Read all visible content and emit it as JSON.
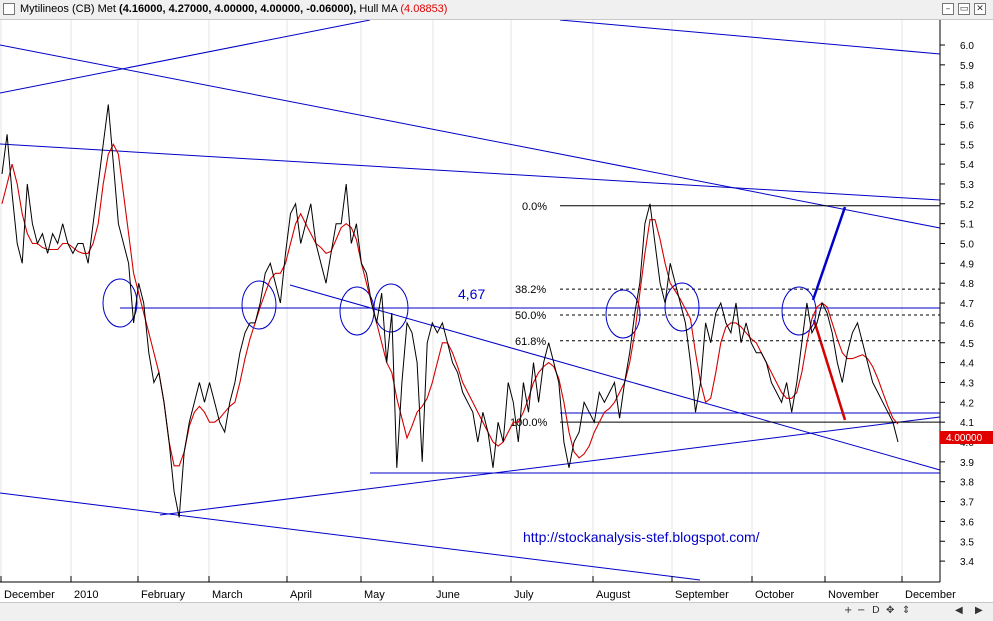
{
  "header": {
    "symbol": "Mytilineos (CB) Met",
    "ohlc": "(4.16000, 4.27000, 4.00000, 4.00000, -0.06000),",
    "indicator": "Hull MA",
    "indicator_value": "(4.08853)"
  },
  "toolbar": {
    "zoom_in": "+",
    "zoom_out": "−",
    "zoom_reset": "D",
    "move": "✥",
    "move_y": "⇕",
    "close": "✕",
    "restore": "▭",
    "min": "–"
  },
  "annotation": {
    "level_label": "4,67",
    "url": "http://stockanalysis-stef.blogspot.com/",
    "last_price_tag": "4.00000"
  },
  "colors": {
    "price": "#000000",
    "hull_ma": "#d40000",
    "trendlines": "#0000c8",
    "fib": "#000000",
    "last_tag_bg": "#e00000"
  },
  "chart_data": {
    "type": "line",
    "title": "Mytilineos (CB) Met",
    "ylim": [
      3.3,
      6.1
    ],
    "y_ticks": [
      "6.0",
      "5.9",
      "5.8",
      "5.7",
      "5.6",
      "5.5",
      "5.4",
      "5.3",
      "5.2",
      "5.1",
      "5.0",
      "4.9",
      "4.8",
      "4.7",
      "4.6",
      "4.5",
      "4.4",
      "4.3",
      "4.2",
      "4.1",
      "4.0",
      "3.9",
      "3.8",
      "3.7",
      "3.6",
      "3.5",
      "3.4"
    ],
    "x_labels": [
      "December",
      "2010",
      "February",
      "March",
      "April",
      "May",
      "June",
      "July",
      "August",
      "September",
      "October",
      "November",
      "December"
    ],
    "grid": true,
    "series": [
      {
        "name": "Mytilineos (CB) Met",
        "values": [
          5.35,
          5.55,
          5.25,
          5.0,
          4.9,
          5.3,
          5.1,
          5.0,
          5.05,
          4.95,
          5.05,
          5.0,
          5.1,
          5.0,
          4.95,
          5.0,
          5.0,
          4.9,
          5.1,
          5.3,
          5.5,
          5.7,
          5.4,
          5.1,
          5.0,
          4.9,
          4.6,
          4.8,
          4.7,
          4.45,
          4.3,
          4.35,
          4.2,
          4.0,
          3.75,
          3.62,
          3.95,
          4.1,
          4.2,
          4.3,
          4.2,
          4.3,
          4.2,
          4.1,
          4.05,
          4.2,
          4.3,
          4.45,
          4.55,
          4.6,
          4.6,
          4.7,
          4.85,
          4.9,
          4.8,
          4.7,
          4.95,
          5.15,
          5.2,
          5.0,
          5.1,
          5.2,
          5.0,
          4.9,
          4.8,
          4.95,
          5.1,
          5.1,
          5.3,
          5.0,
          5.1,
          4.9,
          4.85,
          4.7,
          4.6,
          4.75,
          4.4,
          4.65,
          3.87,
          4.3,
          4.6,
          4.55,
          4.4,
          3.9,
          4.5,
          4.6,
          4.55,
          4.6,
          4.5,
          4.4,
          4.35,
          4.25,
          4.2,
          4.15,
          4.0,
          4.15,
          4.05,
          3.87,
          4.1,
          4.0,
          4.3,
          4.2,
          4.0,
          4.3,
          4.15,
          4.4,
          4.2,
          4.4,
          4.5,
          4.4,
          4.3,
          4.0,
          3.87,
          4.0,
          4.05,
          4.2,
          4.15,
          4.1,
          4.25,
          4.2,
          4.25,
          4.3,
          4.12,
          4.3,
          4.45,
          4.65,
          4.8,
          5.1,
          5.2,
          5.0,
          4.8,
          4.7,
          4.9,
          4.8,
          4.7,
          4.6,
          4.4,
          4.15,
          4.3,
          4.6,
          4.5,
          4.65,
          4.7,
          4.6,
          4.55,
          4.7,
          4.5,
          4.6,
          4.5,
          4.45,
          4.45,
          4.4,
          4.3,
          4.25,
          4.2,
          4.3,
          4.15,
          4.3,
          4.5,
          4.7,
          4.55,
          4.6,
          4.7,
          4.65,
          4.55,
          4.4,
          4.3,
          4.45,
          4.55,
          4.6,
          4.5,
          4.4,
          4.3,
          4.25,
          4.2,
          4.15,
          4.1,
          4.0
        ]
      },
      {
        "name": "Hull MA",
        "values": [
          5.2,
          5.3,
          5.4,
          5.3,
          5.15,
          5.05,
          5.0,
          5.0,
          4.98,
          4.97,
          4.97,
          4.97,
          5.0,
          5.0,
          4.98,
          4.96,
          4.95,
          4.95,
          5.0,
          5.1,
          5.3,
          5.45,
          5.5,
          5.45,
          5.25,
          5.05,
          4.85,
          4.75,
          4.65,
          4.55,
          4.45,
          4.35,
          4.2,
          4.0,
          3.88,
          3.88,
          3.95,
          4.08,
          4.15,
          4.18,
          4.15,
          4.1,
          4.1,
          4.12,
          4.15,
          4.18,
          4.2,
          4.3,
          4.42,
          4.52,
          4.6,
          4.68,
          4.75,
          4.82,
          4.85,
          4.85,
          4.9,
          5.0,
          5.1,
          5.15,
          5.1,
          5.05,
          5.0,
          4.98,
          4.95,
          4.96,
          5.02,
          5.08,
          5.1,
          5.08,
          5.02,
          4.9,
          4.8,
          4.7,
          4.6,
          4.5,
          4.4,
          4.35,
          4.22,
          4.12,
          4.02,
          4.08,
          4.15,
          4.18,
          4.22,
          4.3,
          4.4,
          4.5,
          4.5,
          4.45,
          4.38,
          4.3,
          4.25,
          4.2,
          4.15,
          4.1,
          4.05,
          4.0,
          3.98,
          4.0,
          4.05,
          4.1,
          4.1,
          4.15,
          4.22,
          4.3,
          4.35,
          4.38,
          4.4,
          4.38,
          4.32,
          4.2,
          4.05,
          3.95,
          3.92,
          3.94,
          3.98,
          4.05,
          4.1,
          4.15,
          4.17,
          4.2,
          4.25,
          4.3,
          4.4,
          4.55,
          4.75,
          4.95,
          5.12,
          5.12,
          5.02,
          4.9,
          4.8,
          4.76,
          4.72,
          4.67,
          4.62,
          4.45,
          4.3,
          4.2,
          4.22,
          4.35,
          4.5,
          4.58,
          4.6,
          4.6,
          4.58,
          4.55,
          4.52,
          4.5,
          4.45,
          4.4,
          4.35,
          4.3,
          4.25,
          4.22,
          4.22,
          4.25,
          4.35,
          4.5,
          4.62,
          4.68,
          4.7,
          4.68,
          4.6,
          4.52,
          4.45,
          4.42,
          4.42,
          4.43,
          4.44,
          4.42,
          4.38,
          4.32,
          4.25,
          4.18,
          4.12,
          4.09
        ]
      }
    ],
    "fibonacci": [
      {
        "label": "0.0%",
        "value": 5.19
      },
      {
        "label": "38.2%",
        "value": 4.77
      },
      {
        "label": "50.0%",
        "value": 4.64
      },
      {
        "label": "61.8%",
        "value": 4.51
      },
      {
        "label": "100.0%",
        "value": 4.1
      }
    ]
  }
}
